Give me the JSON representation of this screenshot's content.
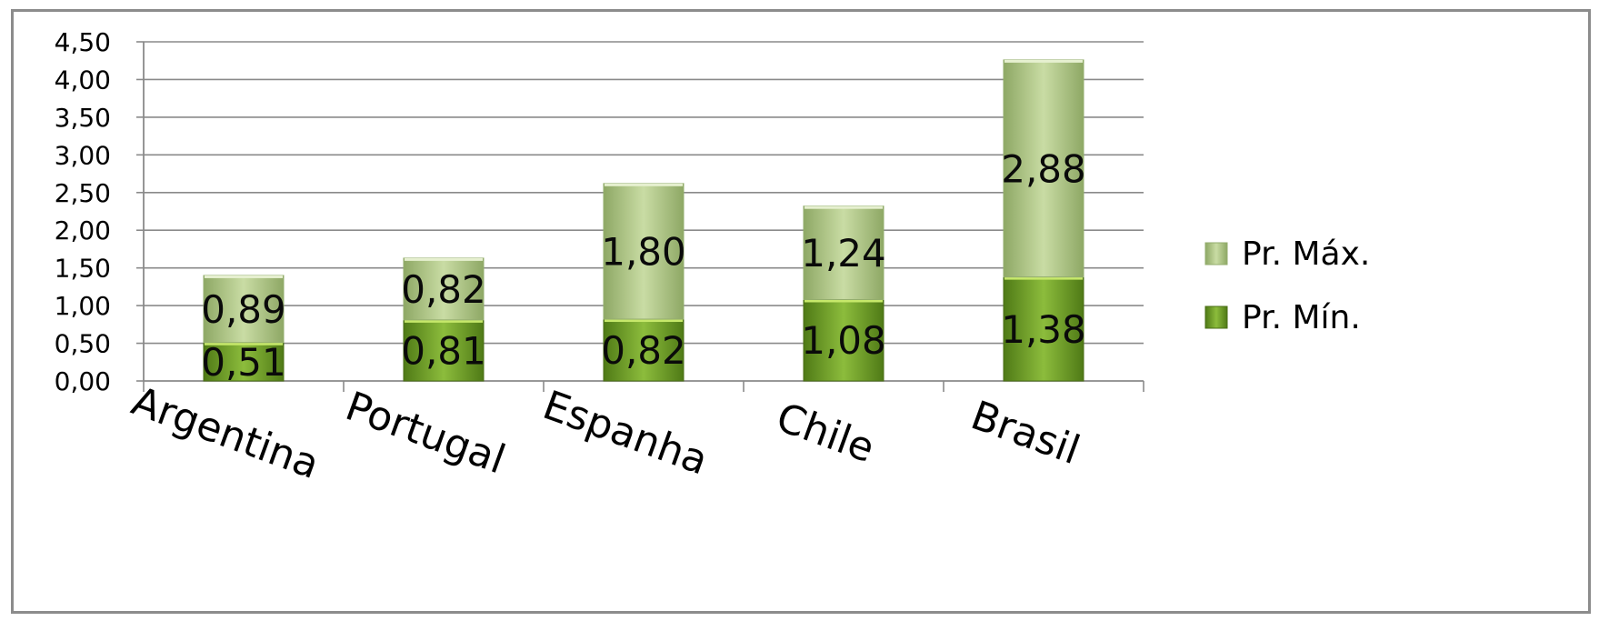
{
  "chart_data": {
    "type": "bar",
    "stacked": true,
    "categories": [
      "Argentina",
      "Portugal",
      "Espanha",
      "Chile",
      "Brasil"
    ],
    "series": [
      {
        "name": "Pr. Mín.",
        "values": [
          0.51,
          0.81,
          0.82,
          1.08,
          1.38
        ],
        "labels": [
          "0,51",
          "0,81",
          "0,82",
          "1,08",
          "1,38"
        ],
        "color": "#5e8f1c"
      },
      {
        "name": "Pr. Máx.",
        "values": [
          0.89,
          0.82,
          1.8,
          1.24,
          2.88
        ],
        "labels": [
          "0,89",
          "0,82",
          "1,80",
          "1,24",
          "2,88"
        ],
        "color": "#a9c47a"
      }
    ],
    "yticks": [
      "0,00",
      "0,50",
      "1,00",
      "1,50",
      "2,00",
      "2,50",
      "3,00",
      "3,50",
      "4,00",
      "4,50"
    ],
    "ylim": [
      0,
      4.5
    ],
    "grid": true,
    "legend_position": "right"
  }
}
